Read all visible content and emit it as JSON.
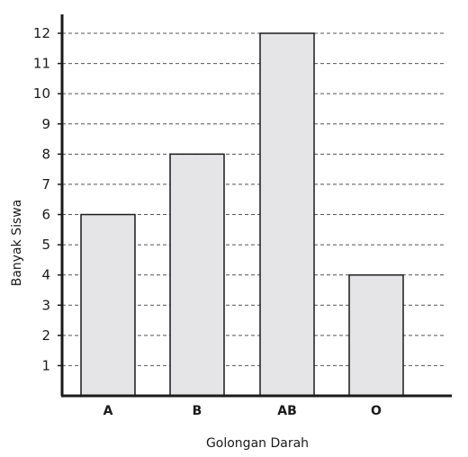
{
  "chart_data": {
    "type": "bar",
    "categories": [
      "A",
      "B",
      "AB",
      "O"
    ],
    "values": [
      6,
      8,
      12,
      4
    ],
    "title": "",
    "xlabel": "Golongan Darah",
    "ylabel": "Banyak Siswa",
    "ylim": [
      0,
      12
    ],
    "yticks": [
      1,
      2,
      3,
      4,
      5,
      6,
      7,
      8,
      9,
      10,
      11,
      12
    ],
    "grid": true,
    "colors": {
      "bar_fill": "#e5e5e7",
      "bar_stroke": "#1a1a1a",
      "axis": "#1a1a1a",
      "grid": "#555555"
    }
  }
}
